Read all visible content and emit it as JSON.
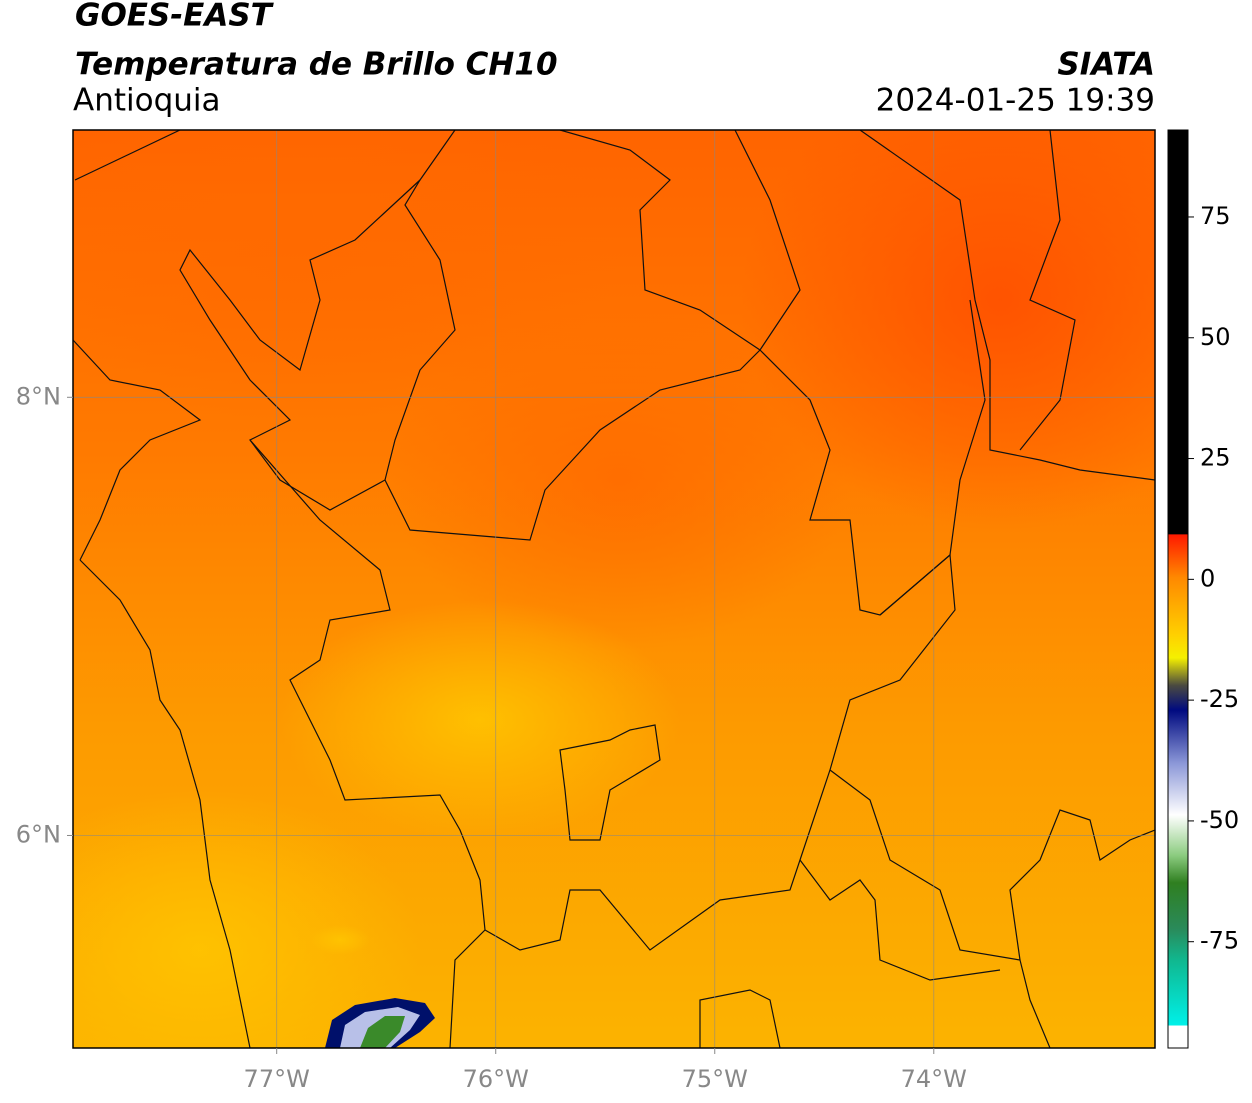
{
  "header": {
    "title": "GOES-EAST",
    "subtitle": "Temperatura de Brillo CH10",
    "region": "Antioquia",
    "source": "SIATA",
    "datetime": "2024-01-25 19:39"
  },
  "map": {
    "lon_lim": [
      -77.93,
      -72.99
    ],
    "lat_lim": [
      5.03,
      9.22
    ],
    "lon_ticks": [
      {
        "value": -77,
        "label": "77°W"
      },
      {
        "value": -76,
        "label": "76°W"
      },
      {
        "value": -75,
        "label": "75°W"
      },
      {
        "value": -74,
        "label": "74°W"
      }
    ],
    "lat_ticks": [
      {
        "value": 8,
        "label": "8°N"
      },
      {
        "value": 6,
        "label": "6°N"
      }
    ]
  },
  "colorbar": {
    "lim": [
      -97,
      93
    ],
    "ticks": [
      75,
      50,
      25,
      0,
      -25,
      -50,
      -75
    ]
  }
}
